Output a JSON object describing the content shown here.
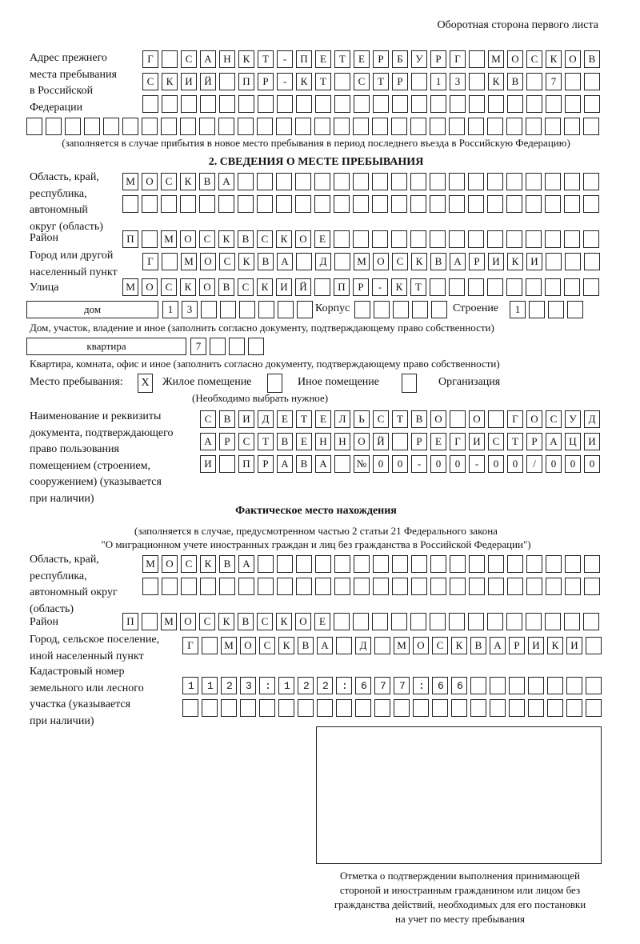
{
  "header": "Оборотная сторона первого листа",
  "prev_address": {
    "label": "Адрес прежнего\nместа пребывания\nв Российской\nФедерации",
    "rows": [
      "Г САНКТ-ПЕТЕРБУРГ МОСКОВ",
      "СКИЙ ПР-КТ СТР 13 КВ 7  ",
      "                        ",
      "                              "
    ],
    "note": "(заполняется в случае прибытия в новое место пребывания в период последнего въезда в Российскую Федерацию)"
  },
  "section2": {
    "title": "2. СВЕДЕНИЯ О МЕСТЕ ПРЕБЫВАНИЯ",
    "region_label": "Область, край,\nреспублика,\nавтономный\nокруг (область)",
    "region_rows": [
      "МОСКВА                   ",
      "                         "
    ],
    "district_label": "Район",
    "district_row": "П МОСКВСКОЕ              ",
    "city_label": "Город или другой\nнаселенный пункт",
    "city_row": "Г МОСКВА Д МОСКВАРИКИ   ",
    "street_label": "Улица",
    "street_row": "МОСКОВСКИЙ ПР-КТ         ",
    "house_type": "дом",
    "house_cells": "13      ",
    "korpus_label": "Корпус",
    "korpus_cells": "     ",
    "building_label": "Строение",
    "building_cells": "1   ",
    "house_note": "Дом, участок, владение и иное (заполнить согласно документу, подтверждающему право собственности)",
    "apt_type": "квартира",
    "apt_cells": "7   ",
    "apt_note": "Квартира, комната, офис и иное (заполнить согласно документу, подтверждающему право собственности)",
    "stay_label": "Место пребывания:",
    "stay_options": [
      {
        "label": "Жилое помещение",
        "mark": "X",
        "checked": true
      },
      {
        "label": "Иное помещение",
        "mark": "",
        "checked": false
      },
      {
        "label": "Организация",
        "mark": "",
        "checked": false
      }
    ],
    "stay_note": "(Необходимо выбрать нужное)",
    "doc_label": "Наименование и реквизиты\nдокумента, подтверждающего\nправо пользования\nпомещением (строением,\nсооружением) (указывается\nпри наличии)",
    "doc_rows": [
      "СВИДЕТЕЛЬСТВО О ГОСУД",
      "АРСТВЕННОЙ РЕГИСТРАЦИ",
      "И ПРАВА №00-00-00/000"
    ]
  },
  "actual": {
    "title": "Фактическое место нахождения",
    "note1": "(заполняется в случае, предусмотренном частью 2 статьи 21 Федерального закона",
    "note2": "\"О миграционном учете иностранных граждан и лиц без гражданства в Российской Федерации\")",
    "region_label": "Область, край,\nреспублика,\nавтономный округ\n(область)",
    "region_rows": [
      "МОСКВА                  ",
      "                        "
    ],
    "district_label": "Район",
    "district_row": "П МОСКВСКОЕ              ",
    "city_label": "Город, сельское поселение,\nиной населенный пункт",
    "city_row": "Г МОСКВА Д МОСКВАРИКИ ",
    "cadastre_label": "Кадастровый номер\nземельного или лесного\nучастка (указывается\nпри наличии)",
    "cadastre_rows": [
      "1123:122:677:66       ",
      "                      "
    ]
  },
  "stamp_caption": "Отметка о подтверждении выполнения принимающей\nстороной и иностранным гражданином или лицом без\nгражданства действий, необходимых для его постановки\nна учет по месту пребывания"
}
